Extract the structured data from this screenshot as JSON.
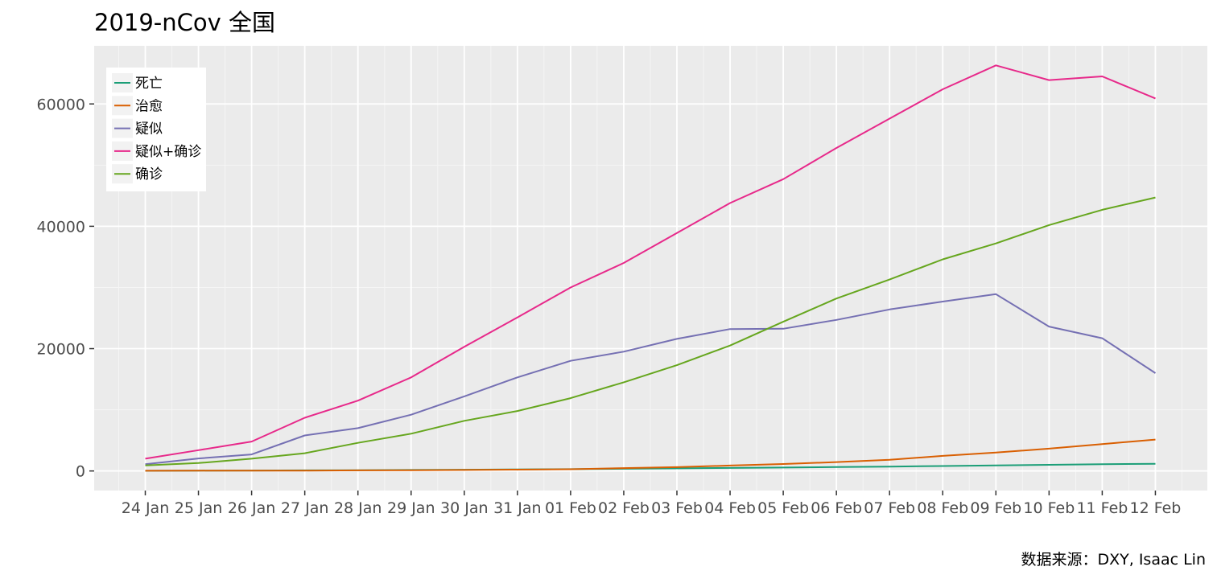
{
  "chart_data": {
    "type": "line",
    "title": "2019-nCov 全国",
    "caption": "数据来源：DXY, Isaac Lin",
    "xlabel": "",
    "ylabel": "",
    "x_tick_labels": [
      "24 Jan",
      "25 Jan",
      "26 Jan",
      "27 Jan",
      "28 Jan",
      "29 Jan",
      "30 Jan",
      "31 Jan",
      "01 Feb",
      "02 Feb",
      "03 Feb",
      "04 Feb",
      "05 Feb",
      "06 Feb",
      "07 Feb",
      "08 Feb",
      "09 Feb",
      "10 Feb",
      "11 Feb",
      "12 Feb"
    ],
    "x": [
      "2020-01-24",
      "2020-01-25",
      "2020-01-26",
      "2020-01-27",
      "2020-01-28",
      "2020-01-29",
      "2020-01-30",
      "2020-01-31",
      "2020-02-01",
      "2020-02-02",
      "2020-02-03",
      "2020-02-04",
      "2020-02-05",
      "2020-02-06",
      "2020-02-07",
      "2020-02-08",
      "2020-02-09",
      "2020-02-10",
      "2020-02-11",
      "2020-02-12"
    ],
    "ylim": [
      -3200,
      69500
    ],
    "y_ticks": [
      0,
      20000,
      40000,
      60000
    ],
    "grid": true,
    "legend_position": "top-left",
    "series": [
      {
        "name": "死亡",
        "color": "#1b9e77",
        "values": [
          40,
          55,
          80,
          105,
          130,
          170,
          210,
          260,
          300,
          360,
          430,
          490,
          560,
          640,
          720,
          810,
          900,
          1010,
          1110,
          1170
        ]
      },
      {
        "name": "治愈",
        "color": "#d95f02",
        "values": [
          40,
          50,
          55,
          60,
          100,
          125,
          160,
          215,
          280,
          470,
          630,
          890,
          1140,
          1460,
          1840,
          2470,
          3020,
          3650,
          4400,
          5140
        ]
      },
      {
        "name": "疑似",
        "color": "#7570b3",
        "values": [
          1100,
          2050,
          2700,
          5800,
          7000,
          9200,
          12200,
          15300,
          18000,
          19500,
          21600,
          23200,
          23250,
          24700,
          26400,
          27700,
          28900,
          23600,
          21700,
          16000
        ]
      },
      {
        "name": "疑似+确诊",
        "color": "#e7298a",
        "values": [
          2000,
          3400,
          4800,
          8700,
          11500,
          15300,
          20300,
          25100,
          30000,
          34000,
          38900,
          43800,
          47700,
          52800,
          57600,
          62400,
          66300,
          63900,
          64500,
          60900
        ]
      },
      {
        "name": "确诊",
        "color": "#66a61e",
        "values": [
          900,
          1300,
          2000,
          2900,
          4600,
          6100,
          8200,
          9800,
          11900,
          14500,
          17300,
          20500,
          24400,
          28200,
          31300,
          34600,
          37200,
          40200,
          42700,
          44700
        ]
      }
    ]
  }
}
